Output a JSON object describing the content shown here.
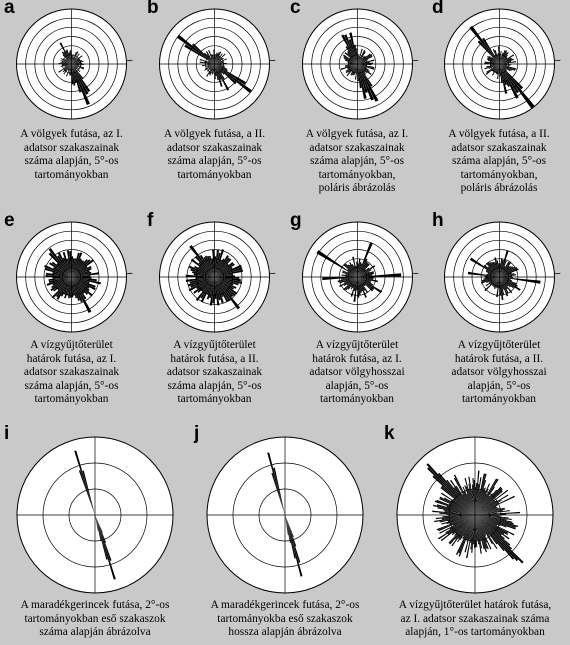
{
  "panels": [
    {
      "letter": "a",
      "caption": "A völgyek futása, az I.\nadatsor szakaszainak\nszáma alapján, 5°-os\ntartományokban",
      "circles": 6,
      "style": "rose5",
      "seed": 11,
      "major": [
        [
          154,
          1.0
        ],
        [
          148,
          0.78
        ],
        [
          160,
          0.55
        ],
        [
          330,
          0.45
        ],
        [
          172,
          0.5
        ]
      ]
    },
    {
      "letter": "b",
      "caption": "A völgyek futása, a II.\nadatsor szakaszainak\nszáma alapján, 5°-os\ntartományokban",
      "circles": 6,
      "style": "rose5",
      "seed": 23,
      "major": [
        [
          124,
          1.0
        ],
        [
          304,
          0.98
        ],
        [
          150,
          0.55
        ],
        [
          160,
          0.5
        ]
      ]
    },
    {
      "letter": "c",
      "caption": "A völgyek futása, az I.\nadatsor szakaszainak\nszáma alapján, 5°-os\ntartományokban,\npoláris ábrázolás",
      "circles": 6,
      "style": "polar",
      "seed": 31,
      "major": [
        [
          152,
          1.0
        ],
        [
          164,
          0.8
        ],
        [
          332,
          0.75
        ],
        [
          344,
          0.7
        ]
      ]
    },
    {
      "letter": "d",
      "caption": "A völgyek futása, a II.\nadatsor szakaszainak\nszáma alapján, 5°-os\ntartományokban,\npoláris ábrázolás",
      "circles": 6,
      "style": "polar",
      "seed": 47,
      "major": [
        [
          140,
          1.0
        ],
        [
          320,
          0.92
        ],
        [
          150,
          0.7
        ],
        [
          164,
          0.6
        ]
      ]
    },
    {
      "letter": "e",
      "caption": "A vízgyűjtőterület\nhatárok futása, az I.\nadatsor szakaszainak\nszáma alapján, 5°-os\ntartományokban",
      "circles": 6,
      "style": "dense",
      "seed": 53,
      "major": [
        [
          150,
          0.78
        ],
        [
          318,
          0.8
        ],
        [
          100,
          0.55
        ],
        [
          196,
          0.45
        ]
      ]
    },
    {
      "letter": "f",
      "caption": "A vízgyűjtőterület\nhatárok futása, a II.\nadatsor szakaszainak\nszáma alapján, 5°-os\ntartományokban",
      "circles": 6,
      "style": "dense",
      "seed": 61,
      "major": [
        [
          140,
          0.8
        ],
        [
          320,
          0.78
        ],
        [
          100,
          0.5
        ],
        [
          186,
          0.45
        ]
      ]
    },
    {
      "letter": "g",
      "caption": "A vízgyűjtőterület\nhatárok futása, az I.\nadatsor völgyhosszai\nalapján, 5°-os\ntartományokban",
      "circles": 6,
      "style": "long",
      "seed": 71,
      "major": [
        [
          300,
          1.0
        ],
        [
          86,
          1.0
        ],
        [
          266,
          0.85
        ],
        [
          20,
          0.7
        ],
        [
          186,
          0.6
        ],
        [
          120,
          0.6
        ],
        [
          156,
          0.55
        ]
      ]
    },
    {
      "letter": "h",
      "caption": "A vízgyűjtőterület\nhatárok futása, a II.\nadatsor völgyhosszai\nalapján, 5°-os\ntartományokban",
      "circles": 6,
      "style": "long",
      "seed": 83,
      "major": [
        [
          96,
          1.0
        ],
        [
          276,
          0.7
        ],
        [
          16,
          0.62
        ],
        [
          300,
          0.66
        ],
        [
          120,
          0.5
        ],
        [
          170,
          0.45
        ]
      ]
    },
    {
      "letter": "i",
      "caption": "A maradékgerincek futása, 2°-os\ntartományokban eső szakaszok\nszáma alapján ábrázolva",
      "circles": 3,
      "style": "narrow",
      "seed": 91,
      "major": [
        [
          162,
          0.95
        ],
        [
          342,
          0.93
        ],
        [
          158,
          0.4
        ],
        [
          166,
          0.35
        ]
      ]
    },
    {
      "letter": "j",
      "caption": "A maradékgerincek futása, 2°-os\ntartományokba eső szakaszok\nhossza alapján ábrázolva",
      "circles": 3,
      "style": "narrow",
      "seed": 97,
      "major": [
        [
          164,
          0.95
        ],
        [
          344,
          0.93
        ],
        [
          160,
          0.45
        ],
        [
          168,
          0.4
        ]
      ]
    },
    {
      "letter": "k",
      "caption": "A vízgyűjtőterület határok futása,\naz I. adatsor szakaszainak száma\nalapján, 1°-os tartományokban",
      "circles": 3,
      "style": "fine",
      "seed": 101,
      "major": [
        [
          315,
          1.0
        ],
        [
          135,
          0.95
        ],
        [
          100,
          0.55
        ],
        [
          280,
          0.45
        ],
        [
          200,
          0.4
        ],
        [
          20,
          0.4
        ]
      ]
    }
  ]
}
